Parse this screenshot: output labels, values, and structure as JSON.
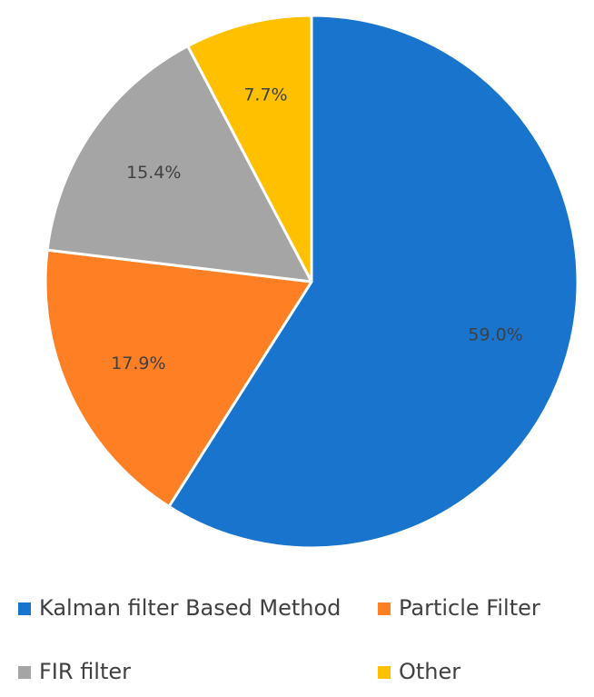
{
  "chart_data": {
    "type": "pie",
    "title": "",
    "series": [
      {
        "values": [
          59.0,
          17.9,
          15.4,
          7.7
        ]
      }
    ],
    "categories": [
      "Kalman filter Based Method",
      "Particle Filter",
      "FIR filter",
      "Other"
    ],
    "slices": [
      {
        "label": "Kalman filter Based Method",
        "value": 59.0,
        "data_label": "59.0%",
        "color": "#1874CD"
      },
      {
        "label": "Particle Filter",
        "value": 17.9,
        "data_label": "17.9%",
        "color": "#FF7F24"
      },
      {
        "label": "FIR filter",
        "value": 15.4,
        "data_label": "15.4%",
        "color": "#A5A5A5"
      },
      {
        "label": "Other",
        "value": 7.7,
        "data_label": "7.7%",
        "color": "#FFC000"
      }
    ],
    "start_angle_deg": 0,
    "direction": "clockwise",
    "legend_position": "bottom",
    "slice_border_color": "#ffffff"
  }
}
